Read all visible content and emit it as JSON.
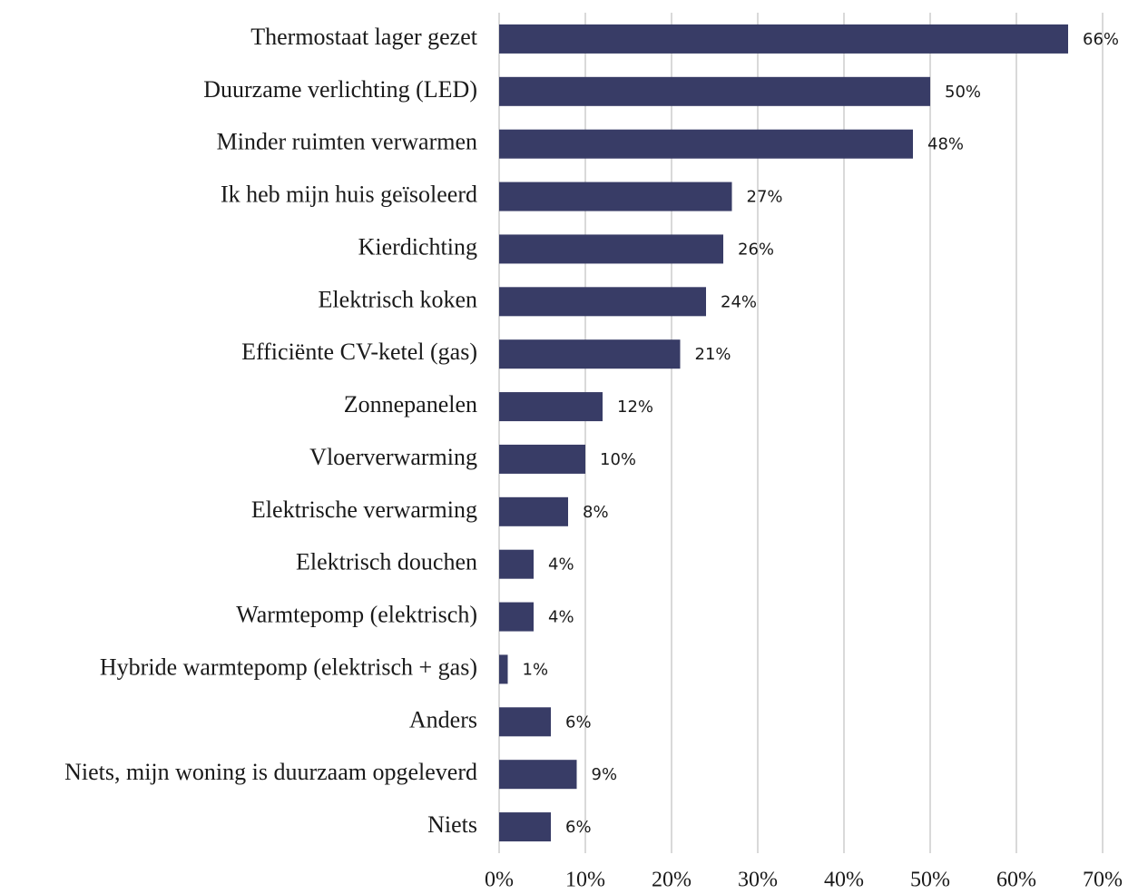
{
  "chart_data": {
    "type": "bar",
    "orientation": "horizontal",
    "categories": [
      "Thermostaat lager gezet",
      "Duurzame verlichting (LED)",
      "Minder ruimten verwarmen",
      "Ik heb mijn huis geïsoleerd",
      "Kierdichting",
      "Elektrisch koken",
      "Efficiënte CV-ketel (gas)",
      "Zonnepanelen",
      "Vloerverwarming",
      "Elektrische verwarming",
      "Elektrisch douchen",
      "Warmtepomp (elektrisch)",
      "Hybride warmtepomp (elektrisch + gas)",
      "Anders",
      "Niets, mijn woning is duurzaam opgeleverd",
      "Niets"
    ],
    "values": [
      66,
      50,
      48,
      27,
      26,
      24,
      21,
      12,
      10,
      8,
      4,
      4,
      1,
      6,
      9,
      6
    ],
    "value_labels": [
      "66%",
      "50%",
      "48%",
      "27%",
      "26%",
      "24%",
      "21%",
      "12%",
      "10%",
      "8%",
      "4%",
      "4%",
      "1%",
      "6%",
      "9%",
      "6%"
    ],
    "color": "#383c66",
    "xlim": [
      0,
      70
    ],
    "xticks": [
      {
        "value": 0,
        "label": "0%"
      },
      {
        "value": 10,
        "label": "10%"
      },
      {
        "value": 20,
        "label": "20%"
      },
      {
        "value": 30,
        "label": "30%"
      },
      {
        "value": 40,
        "label": "40%"
      },
      {
        "value": 50,
        "label": "50%"
      },
      {
        "value": 60,
        "label": "60%"
      },
      {
        "value": 70,
        "label": "70%"
      }
    ],
    "grid": true
  }
}
